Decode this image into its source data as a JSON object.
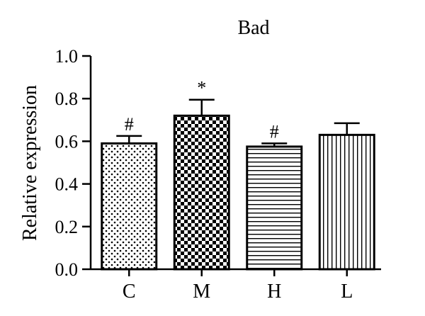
{
  "chart_data": {
    "type": "bar",
    "title": "Bad",
    "ylabel": "Relative expression",
    "xlabel": "",
    "categories": [
      "C",
      "M",
      "H",
      "L"
    ],
    "values": [
      0.59,
      0.72,
      0.575,
      0.63
    ],
    "errors": [
      0.035,
      0.075,
      0.015,
      0.055
    ],
    "annotations": [
      "#",
      "*",
      "#",
      ""
    ],
    "patterns": [
      "dots",
      "checker",
      "horizontal-lines",
      "vertical-lines"
    ],
    "ylim": [
      0,
      1.0
    ],
    "yticks": [
      0.0,
      0.2,
      0.4,
      0.6,
      0.8,
      1.0
    ],
    "ytick_labels": [
      "0.0",
      "0.2",
      "0.4",
      "0.6",
      "0.8",
      "1.0"
    ],
    "grid": false,
    "legend": "none",
    "colors": {
      "bar_fill": "#ffffff",
      "stroke": "#000000"
    }
  }
}
